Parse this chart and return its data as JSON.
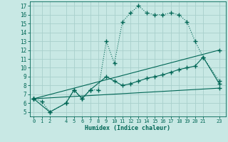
{
  "xlabel": "Humidex (Indice chaleur)",
  "bg_color": "#c8e8e4",
  "grid_color": "#a8d0cc",
  "line_color": "#006655",
  "xlim": [
    -0.5,
    23.8
  ],
  "ylim": [
    4.5,
    17.5
  ],
  "xticks": [
    0,
    1,
    2,
    4,
    5,
    6,
    7,
    8,
    9,
    10,
    11,
    12,
    13,
    14,
    15,
    16,
    17,
    18,
    19,
    20,
    21,
    23
  ],
  "yticks": [
    5,
    6,
    7,
    8,
    9,
    10,
    11,
    12,
    13,
    14,
    15,
    16,
    17
  ],
  "curve1_x": [
    0,
    1,
    2,
    4,
    5,
    6,
    7,
    8,
    9,
    10,
    11,
    12,
    13,
    14,
    15,
    16,
    17,
    18,
    19,
    20,
    21,
    23
  ],
  "curve1_y": [
    6.5,
    6.2,
    5.0,
    6.0,
    7.5,
    6.5,
    7.5,
    7.5,
    13.0,
    10.5,
    15.2,
    16.2,
    17.0,
    16.2,
    16.0,
    16.0,
    16.2,
    16.0,
    15.2,
    13.0,
    11.2,
    8.5
  ],
  "curve2_x": [
    0,
    2,
    4,
    5,
    6,
    7,
    9,
    10,
    11,
    12,
    13,
    14,
    15,
    16,
    17,
    18,
    19,
    20,
    21,
    23
  ],
  "curve2_y": [
    6.5,
    5.0,
    6.0,
    7.5,
    6.5,
    7.5,
    9.0,
    8.5,
    8.0,
    8.2,
    8.5,
    8.8,
    9.0,
    9.2,
    9.5,
    9.8,
    10.0,
    10.2,
    11.2,
    8.2
  ],
  "curve3_x": [
    0,
    23
  ],
  "curve3_y": [
    6.5,
    12.0
  ],
  "curve4_x": [
    0,
    23
  ],
  "curve4_y": [
    6.5,
    7.7
  ]
}
